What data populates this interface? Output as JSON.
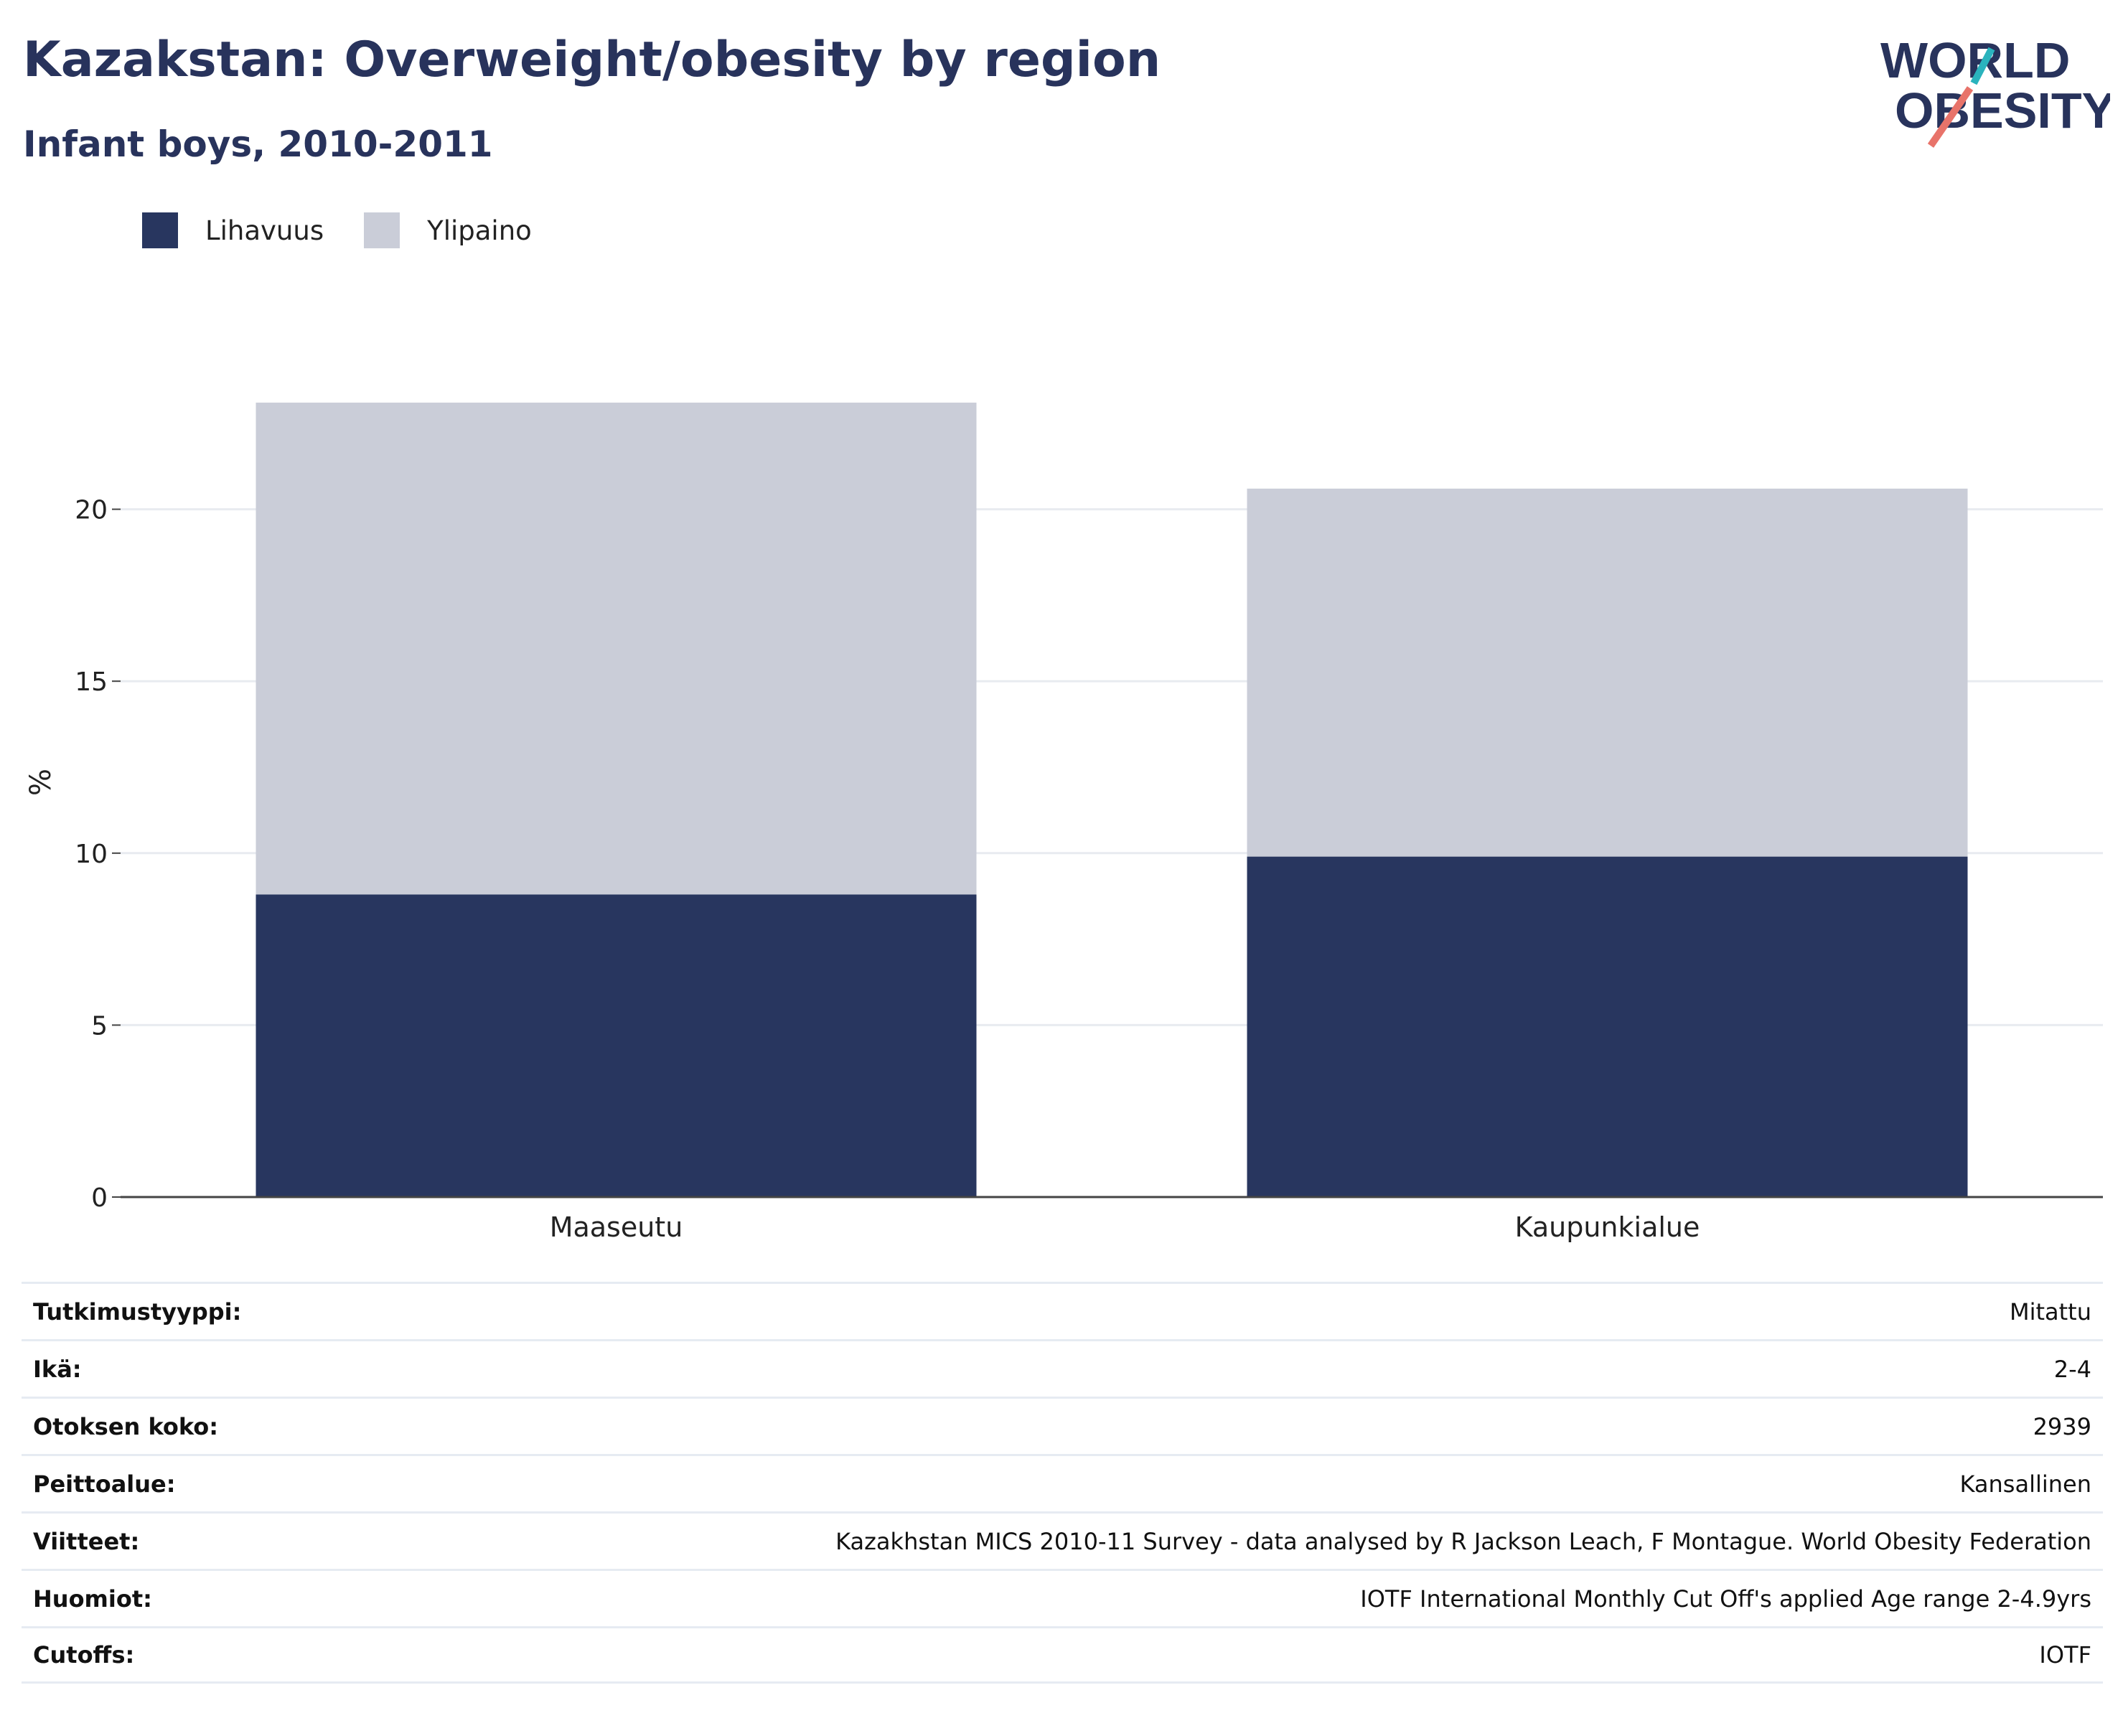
{
  "header": {
    "title": "Kazakstan: Overweight/obesity by region",
    "subtitle": "Infant boys, 2010-2011"
  },
  "logo": {
    "text_line1": "WORLD",
    "text_line2": "OBESITY",
    "colors": {
      "text": "#28335c",
      "slash_top": "#2ab3bd",
      "slash_bottom": "#e8736a"
    }
  },
  "chart_data": {
    "type": "bar",
    "stacked": true,
    "categories": [
      "Maaseutu",
      "Kaupunkialue"
    ],
    "series": [
      {
        "name": "Lihavuus",
        "values": [
          8.8,
          9.9
        ],
        "color": "#28365f"
      },
      {
        "name": "Ylipaino",
        "values": [
          14.3,
          10.7
        ],
        "color": "#cacdd8"
      }
    ],
    "ylabel": "%",
    "ylim": [
      0,
      25
    ],
    "yticks": [
      0,
      5,
      10,
      15,
      20
    ],
    "grid": true,
    "legend_position": "top-left"
  },
  "metadata": [
    {
      "key": "Tutkimustyyppi:",
      "value": "Mitattu"
    },
    {
      "key": "Ikä:",
      "value": "2-4"
    },
    {
      "key": "Otoksen koko:",
      "value": "2939"
    },
    {
      "key": "Peittoalue:",
      "value": "Kansallinen"
    },
    {
      "key": "Viitteet:",
      "value": "Kazakhstan MICS 2010-11 Survey - data analysed by R Jackson Leach, F Montague. World Obesity Federation"
    },
    {
      "key": "Huomiot:",
      "value": "IOTF International Monthly Cut Off's applied Age range 2-4.9yrs"
    },
    {
      "key": "Cutoffs:",
      "value": "IOTF"
    }
  ]
}
